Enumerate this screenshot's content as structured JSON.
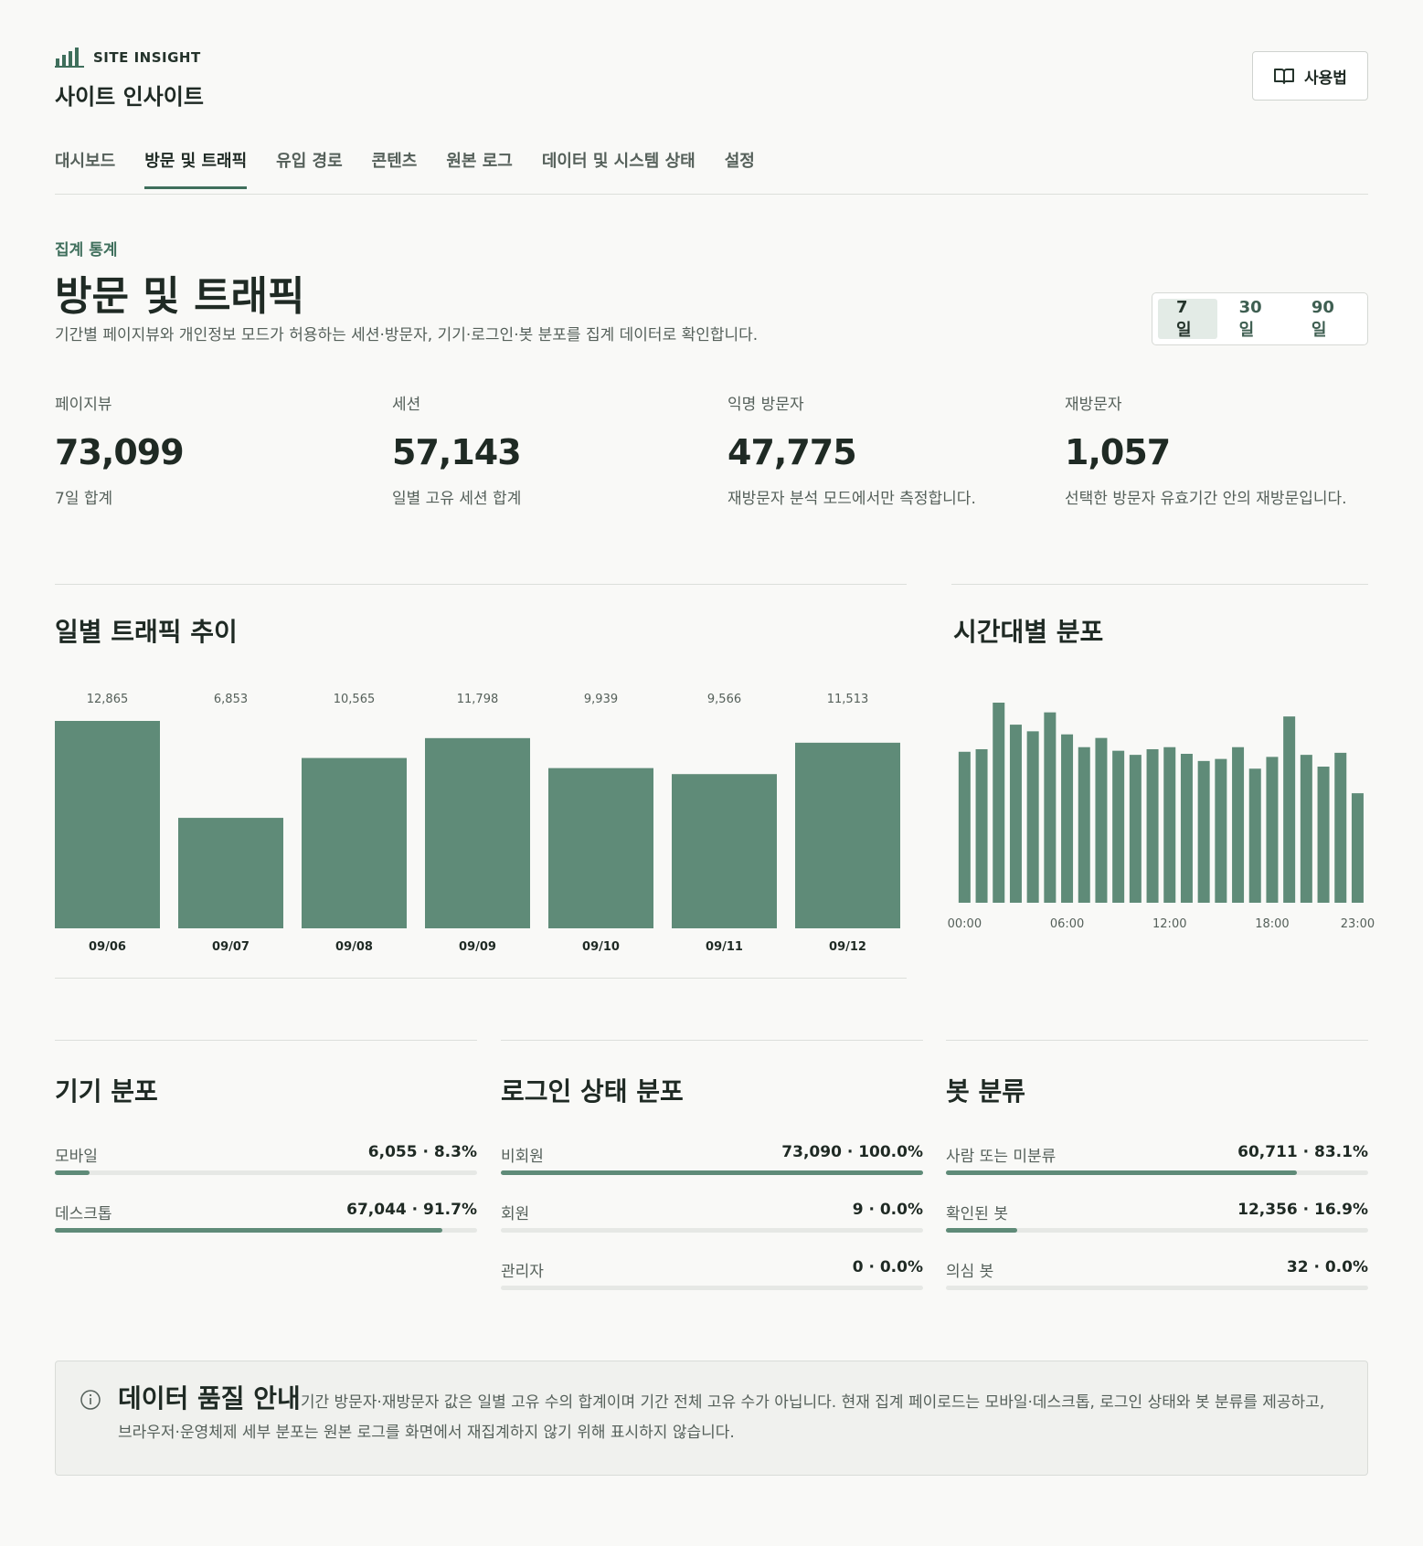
{
  "header": {
    "brand": "SITE INSIGHT",
    "title": "사이트 인사이트",
    "help_button": "사용법"
  },
  "nav": {
    "items": [
      "대시보드",
      "방문 및 트래픽",
      "유입 경로",
      "콘텐츠",
      "원본 로그",
      "데이터 및 시스템 상태",
      "설정"
    ],
    "active": 1
  },
  "section": {
    "eyebrow": "집계 통계",
    "title": "방문 및 트래픽",
    "description": "기간별 페이지뷰와 개인정보 모드가 허용하는 세션·방문자, 기기·로그인·봇 분포를 집계 데이터로 확인합니다.",
    "ranges": [
      "7일",
      "30일",
      "90일"
    ],
    "active_range": 0
  },
  "kpis": [
    {
      "label": "페이지뷰",
      "value": "73,099",
      "note": "7일 합계"
    },
    {
      "label": "세션",
      "value": "57,143",
      "note": "일별 고유 세션 합계"
    },
    {
      "label": "익명 방문자",
      "value": "47,775",
      "note": "재방문자 분석 모드에서만 측정합니다."
    },
    {
      "label": "재방문자",
      "value": "1,057",
      "note": "선택한 방문자 유효기간 안의 재방문입니다."
    }
  ],
  "chart_data": [
    {
      "type": "bar",
      "title": "일별 트래픽 추이",
      "categories": [
        "09/06",
        "09/07",
        "09/08",
        "09/09",
        "09/10",
        "09/11",
        "09/12"
      ],
      "values": [
        12865,
        6853,
        10565,
        11798,
        9939,
        9566,
        11513
      ],
      "value_labels": [
        "12,865",
        "6,853",
        "10,565",
        "11,798",
        "9,939",
        "9,566",
        "11,513"
      ],
      "color": "#5f8b78"
    },
    {
      "type": "bar",
      "title": "시간대별 분포",
      "categories": [
        "00:00",
        null,
        null,
        null,
        null,
        null,
        "06:00",
        null,
        null,
        null,
        null,
        null,
        "12:00",
        null,
        null,
        null,
        null,
        null,
        "18:00",
        null,
        null,
        null,
        null,
        "23:00"
      ],
      "values": [
        2950,
        3000,
        3910,
        3480,
        3350,
        3720,
        3290,
        3040,
        3220,
        2970,
        2890,
        3000,
        3040,
        2910,
        2770,
        2810,
        3040,
        2620,
        2850,
        3640,
        2890,
        2660,
        2930,
        2140
      ],
      "color": "#5f8b78"
    }
  ],
  "distributions": [
    {
      "title": "기기 분포",
      "items": [
        {
          "label": "모바일",
          "value_label": "6,055 · 8.3%",
          "percent": 8.3
        },
        {
          "label": "데스크톱",
          "value_label": "67,044 · 91.7%",
          "percent": 91.7
        }
      ]
    },
    {
      "title": "로그인 상태 분포",
      "items": [
        {
          "label": "비회원",
          "value_label": "73,090 · 100.0%",
          "percent": 100.0
        },
        {
          "label": "회원",
          "value_label": "9 · 0.0%",
          "percent": 0.0
        },
        {
          "label": "관리자",
          "value_label": "0 · 0.0%",
          "percent": 0.0
        }
      ]
    },
    {
      "title": "봇 분류",
      "items": [
        {
          "label": "사람 또는 미분류",
          "value_label": "60,711 · 83.1%",
          "percent": 83.1
        },
        {
          "label": "확인된 봇",
          "value_label": "12,356 · 16.9%",
          "percent": 16.9
        },
        {
          "label": "의심 봇",
          "value_label": "32 · 0.0%",
          "percent": 0.0
        }
      ]
    }
  ],
  "notice": {
    "title": "데이터 품질 안내",
    "text": "기간 방문자·재방문자 값은 일별 고유 수의 합계이며 기간 전체 고유 수가 아닙니다. 현재 집계 페이로드는 모바일·데스크톱, 로그인 상태와 봇 분류를 제공하고, 브라우저·운영체제 세부 분포는 원본 로그를 화면에서 재집계하지 않기 위해 표시하지 않습니다."
  }
}
